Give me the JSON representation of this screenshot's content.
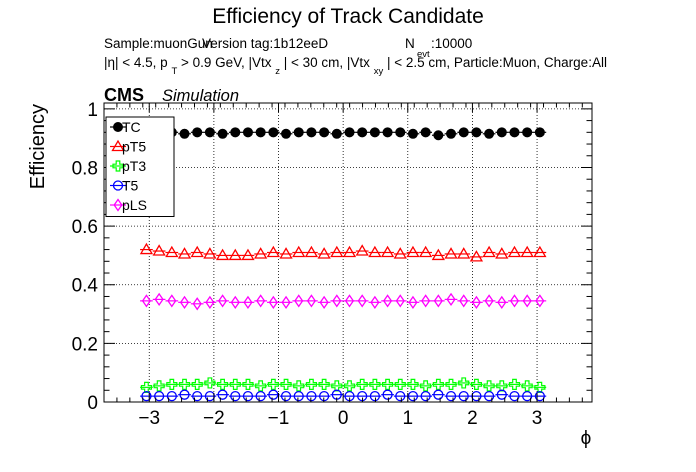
{
  "chart_data": {
    "type": "scatter",
    "title": "Efficiency of Track Candidate",
    "subtitle_line1": {
      "sample": "Sample:muonGun",
      "version": "Version tag:1b12eeD",
      "nevt_symbol": "N",
      "nevt_sub": "evt",
      "nevt_value": ":10000"
    },
    "subtitle_line2": {
      "p1": "|η| < 4.5, p",
      "s1": "T",
      "p2": " > 0.9 GeV, |Vtx",
      "s2": "z",
      "p3": "| < 30 cm, |Vtx",
      "s3": "xy",
      "p4": "| < 2.5 cm, Particle:Muon, Charge:All"
    },
    "cms_label": "CMS",
    "simulation_label": "Simulation",
    "xlabel": "ϕ",
    "ylabel": "Efficiency",
    "xlim": [
      -3.7,
      3.85
    ],
    "ylim": [
      0,
      1.02
    ],
    "x_ticks": [
      -3,
      -2,
      -1,
      0,
      1,
      2,
      3
    ],
    "x_tick_labels": [
      "−3",
      "−2",
      "−1",
      "0",
      "1",
      "2",
      "3"
    ],
    "y_ticks": [
      0,
      0.2,
      0.4,
      0.6,
      0.8,
      1
    ],
    "y_tick_labels": [
      "0",
      "0.2",
      "0.4",
      "0.6",
      "0.8",
      "1"
    ],
    "grid": true,
    "legend_position": "top-left",
    "x_bin_start": -3.1416,
    "x_bin_end": 3.1416,
    "n_bins": 32,
    "series": [
      {
        "name": "TC",
        "color": "#000000",
        "marker": "filled-circle",
        "values": [
          0.92,
          0.92,
          0.92,
          0.915,
          0.92,
          0.92,
          0.915,
          0.92,
          0.92,
          0.92,
          0.92,
          0.915,
          0.92,
          0.92,
          0.92,
          0.915,
          0.92,
          0.92,
          0.92,
          0.92,
          0.92,
          0.915,
          0.92,
          0.91,
          0.915,
          0.92,
          0.92,
          0.915,
          0.92,
          0.92,
          0.92,
          0.92
        ]
      },
      {
        "name": "pT5",
        "color": "#ff0000",
        "marker": "open-triangle",
        "values": [
          0.52,
          0.515,
          0.51,
          0.505,
          0.51,
          0.505,
          0.5,
          0.5,
          0.5,
          0.505,
          0.51,
          0.505,
          0.51,
          0.51,
          0.505,
          0.51,
          0.51,
          0.515,
          0.51,
          0.51,
          0.505,
          0.51,
          0.51,
          0.5,
          0.505,
          0.505,
          0.495,
          0.51,
          0.505,
          0.51,
          0.51,
          0.51
        ]
      },
      {
        "name": "pT3",
        "color": "#00ff00",
        "marker": "open-cross",
        "values": [
          0.05,
          0.055,
          0.06,
          0.06,
          0.06,
          0.065,
          0.06,
          0.06,
          0.06,
          0.055,
          0.06,
          0.06,
          0.055,
          0.06,
          0.06,
          0.055,
          0.055,
          0.06,
          0.06,
          0.06,
          0.06,
          0.06,
          0.055,
          0.06,
          0.06,
          0.065,
          0.06,
          0.055,
          0.055,
          0.06,
          0.055,
          0.05
        ]
      },
      {
        "name": "T5",
        "color": "#0000ff",
        "marker": "open-circle",
        "values": [
          0.02,
          0.02,
          0.02,
          0.025,
          0.02,
          0.02,
          0.025,
          0.02,
          0.02,
          0.02,
          0.025,
          0.02,
          0.02,
          0.02,
          0.02,
          0.025,
          0.02,
          0.02,
          0.02,
          0.025,
          0.02,
          0.02,
          0.02,
          0.025,
          0.02,
          0.02,
          0.02,
          0.02,
          0.025,
          0.02,
          0.02,
          0.02
        ]
      },
      {
        "name": "pLS",
        "color": "#ff00ff",
        "marker": "open-diamond",
        "values": [
          0.345,
          0.35,
          0.345,
          0.34,
          0.335,
          0.34,
          0.345,
          0.34,
          0.34,
          0.345,
          0.34,
          0.34,
          0.345,
          0.345,
          0.34,
          0.345,
          0.345,
          0.345,
          0.34,
          0.345,
          0.345,
          0.34,
          0.345,
          0.345,
          0.35,
          0.345,
          0.34,
          0.345,
          0.34,
          0.345,
          0.345,
          0.345
        ]
      }
    ]
  }
}
